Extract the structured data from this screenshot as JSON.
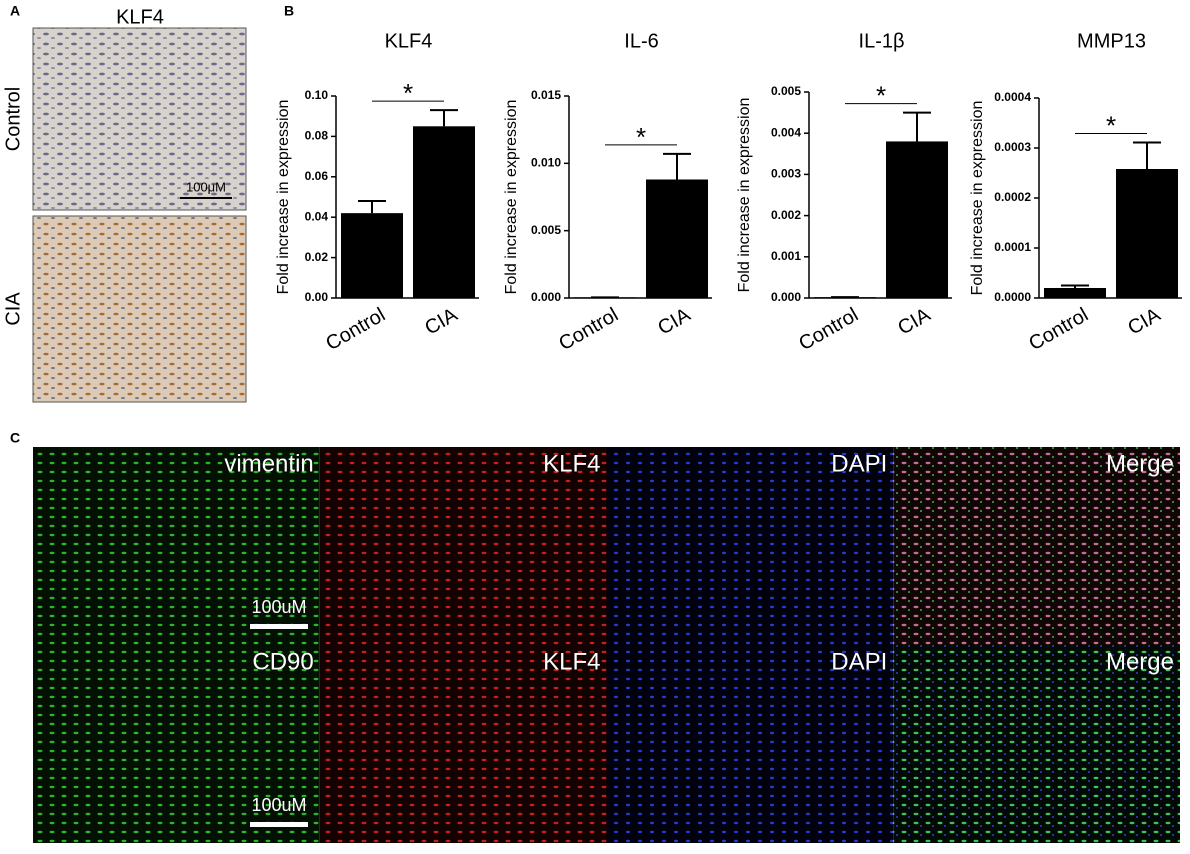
{
  "panels": {
    "a": {
      "label": "A",
      "title": "KLF4",
      "rows": [
        "Control",
        "CIA"
      ],
      "scale": "100μM"
    },
    "b": {
      "label": "B"
    },
    "c": {
      "label": "C",
      "rows": [
        [
          "vimentin",
          "KLF4",
          "DAPI",
          "Merge"
        ],
        [
          "CD90",
          "KLF4",
          "DAPI",
          "Merge"
        ]
      ],
      "scale": [
        "100uM",
        "100uM"
      ]
    }
  },
  "chart_data": [
    {
      "type": "bar",
      "title": "KLF4",
      "y_label": "Fold increase in expression",
      "categories": [
        "Control",
        "CIA"
      ],
      "values": [
        0.042,
        0.085
      ],
      "errors": [
        0.006,
        0.008
      ],
      "color": "#000000",
      "annotation": "*",
      "ylim": [
        0,
        0.1
      ],
      "yticks": [
        {
          "value": 0,
          "label": "0.00"
        },
        {
          "value": 0.02,
          "label": "0.02"
        },
        {
          "value": 0.04,
          "label": "0.04"
        },
        {
          "value": 0.06,
          "label": "0.06"
        },
        {
          "value": 0.08,
          "label": "0.08"
        },
        {
          "value": 0.1,
          "label": "0.10"
        }
      ]
    },
    {
      "type": "bar",
      "title": "IL-6",
      "y_label": "Fold increase in expression",
      "categories": [
        "Control",
        "CIA"
      ],
      "values": [
        5e-05,
        0.0088
      ],
      "errors": [
        0,
        0.0019
      ],
      "color": "#000000",
      "annotation": "*",
      "ylim": [
        0,
        0.015
      ],
      "yticks": [
        {
          "value": 0,
          "label": "0.000"
        },
        {
          "value": 0.005,
          "label": "0.005"
        },
        {
          "value": 0.01,
          "label": "0.010"
        },
        {
          "value": 0.015,
          "label": "0.015"
        }
      ]
    },
    {
      "type": "bar",
      "title": "IL-1β",
      "y_label": "Fold increase in expression",
      "categories": [
        "Control",
        "CIA"
      ],
      "values": [
        2e-05,
        0.0038
      ],
      "errors": [
        0,
        0.0007
      ],
      "color": "#000000",
      "annotation": "*",
      "ylim": [
        0,
        0.005
      ],
      "yticks": [
        {
          "value": 0,
          "label": "0.000"
        },
        {
          "value": 0.001,
          "label": "0.001"
        },
        {
          "value": 0.002,
          "label": "0.002"
        },
        {
          "value": 0.003,
          "label": "0.003"
        },
        {
          "value": 0.004,
          "label": "0.004"
        },
        {
          "value": 0.005,
          "label": "0.005"
        }
      ]
    },
    {
      "type": "bar",
      "title": "MMP13",
      "y_label": "Fold increase in expression",
      "categories": [
        "Control",
        "CIA"
      ],
      "values": [
        2e-05,
        0.000258
      ],
      "errors": [
        5e-06,
        5.3e-05
      ],
      "color": "#000000",
      "annotation": "*",
      "ylim": [
        0,
        0.0004
      ],
      "yticks": [
        {
          "value": 0,
          "label": "0.0000"
        },
        {
          "value": 0.0001,
          "label": "0.0001"
        },
        {
          "value": 0.0002,
          "label": "0.0002"
        },
        {
          "value": 0.0003,
          "label": "0.0003"
        },
        {
          "value": 0.0004,
          "label": "0.0004"
        }
      ]
    }
  ]
}
